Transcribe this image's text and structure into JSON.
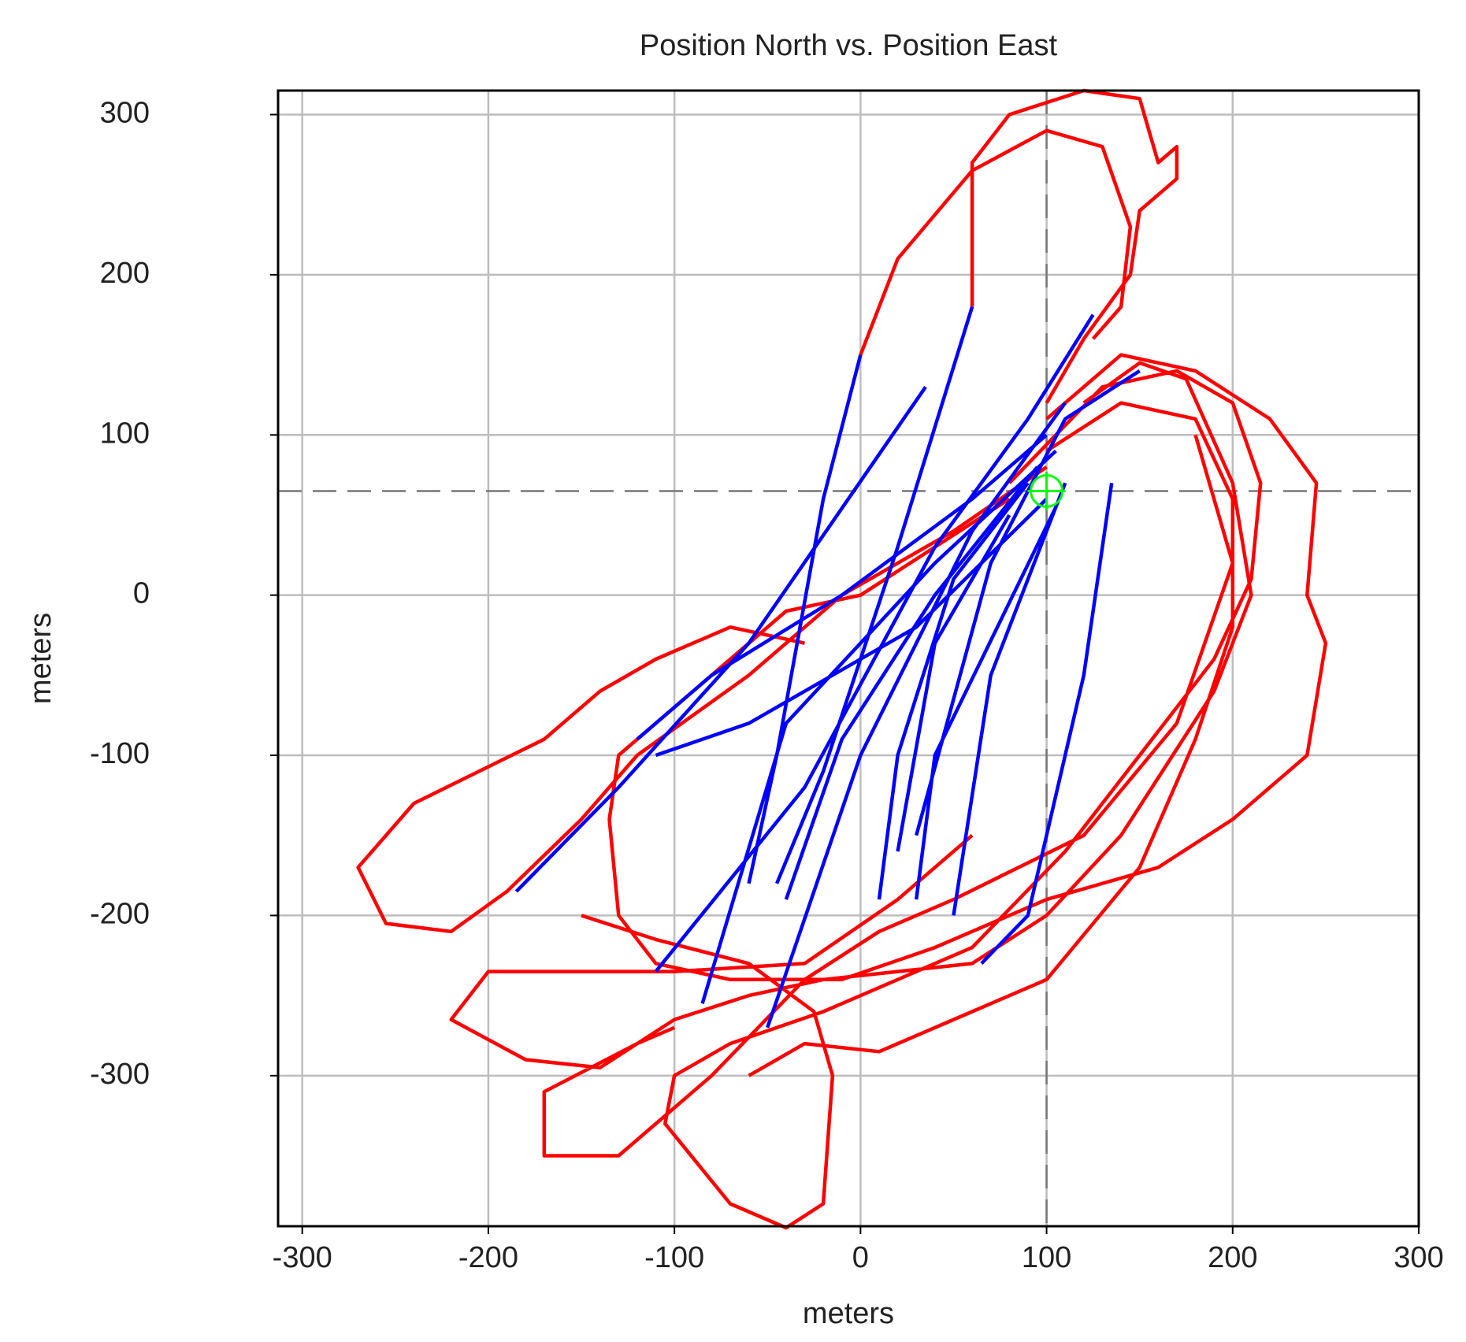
{
  "chart_data": {
    "type": "line",
    "title": "Position North vs. Position East",
    "xlabel": "meters",
    "ylabel": "meters",
    "xlim": [
      -313,
      300
    ],
    "ylim": [
      -394,
      315
    ],
    "xticks": [
      -300,
      -200,
      -100,
      0,
      100,
      200,
      300
    ],
    "yticks": [
      -300,
      -200,
      -100,
      0,
      100,
      200,
      300
    ],
    "grid": true,
    "crosshair": {
      "x": 100,
      "y": 65,
      "color": "#00ff00"
    },
    "series": [
      {
        "color": "#ff0000",
        "x": [
          0,
          20,
          60,
          100,
          130,
          145,
          140,
          125,
          null,
          60,
          60,
          80,
          120,
          150,
          160,
          170,
          170,
          150,
          145,
          120,
          100,
          null,
          100,
          140,
          180,
          220,
          245,
          240,
          250,
          240,
          200,
          160,
          100,
          40,
          -10,
          -70,
          -110,
          -130,
          -135,
          -130,
          -90,
          -40,
          0,
          40,
          80,
          null,
          80,
          130,
          170,
          200,
          215,
          210,
          190,
          150,
          110,
          60,
          20,
          -20,
          -70,
          -100,
          -105,
          -70,
          -40,
          -20,
          -15,
          -25,
          -60,
          -110,
          -150,
          null,
          -30,
          -70,
          -110,
          -140,
          -170,
          -240,
          -270,
          -255,
          -220,
          -190,
          -150,
          -120,
          -60,
          -10,
          50,
          100,
          null,
          60,
          20,
          -30,
          -100,
          -200,
          -220,
          -180,
          -140,
          -100,
          -60,
          -20,
          20,
          60,
          100,
          140,
          190,
          210,
          200,
          175,
          150,
          120,
          null,
          -100,
          -120,
          -170,
          -170,
          -130,
          -80,
          -30,
          10,
          50,
          120,
          170,
          200,
          180,
          null,
          -60,
          -30,
          10,
          60,
          100,
          150,
          180,
          200,
          200,
          180,
          140,
          100
        ],
        "y": [
          150,
          210,
          265,
          290,
          280,
          230,
          180,
          160,
          null,
          180,
          270,
          300,
          315,
          310,
          270,
          280,
          260,
          240,
          200,
          160,
          120,
          null,
          110,
          150,
          140,
          110,
          70,
          0,
          -30,
          -100,
          -140,
          -170,
          -190,
          -220,
          -240,
          -240,
          -230,
          -200,
          -140,
          -100,
          -60,
          -10,
          0,
          30,
          60,
          null,
          70,
          130,
          140,
          120,
          70,
          10,
          -40,
          -100,
          -160,
          -220,
          -240,
          -260,
          -280,
          -300,
          -330,
          -380,
          -395,
          -380,
          -300,
          -260,
          -230,
          -215,
          -200,
          null,
          -30,
          -20,
          -40,
          -60,
          -90,
          -130,
          -170,
          -205,
          -210,
          -185,
          -140,
          -100,
          -50,
          0,
          40,
          80,
          null,
          -150,
          -190,
          -230,
          -235,
          -235,
          -265,
          -290,
          -295,
          -265,
          -250,
          -240,
          -235,
          -230,
          -200,
          -150,
          -60,
          0,
          70,
          135,
          145,
          120,
          null,
          -270,
          -280,
          -310,
          -350,
          -350,
          -300,
          -240,
          -210,
          -190,
          -150,
          -80,
          20,
          100,
          null,
          -300,
          -280,
          -285,
          -260,
          -240,
          -170,
          -90,
          -20,
          60,
          110,
          120,
          90
        ]
      },
      {
        "color": "#0000ff",
        "x": [
          0,
          -20,
          -45,
          -60,
          null,
          35,
          -60,
          -130,
          -185,
          null,
          60,
          20,
          -20,
          -45,
          null,
          125,
          90,
          40,
          -30,
          -110,
          null,
          100,
          60,
          -10,
          -80,
          -120,
          null,
          105,
          40,
          -40,
          -85,
          null,
          110,
          60,
          0,
          -50,
          null,
          95,
          40,
          -10,
          -40,
          null,
          90,
          50,
          20,
          10,
          null,
          80,
          40,
          20,
          null,
          150,
          110,
          70,
          30,
          null,
          110,
          70,
          50,
          null,
          105,
          40,
          30,
          null,
          135,
          120,
          90,
          65,
          null,
          100,
          30,
          -60,
          -110
        ],
        "y": [
          150,
          60,
          -100,
          -180,
          null,
          130,
          -30,
          -120,
          -185,
          null,
          180,
          30,
          -110,
          -180,
          null,
          175,
          110,
          30,
          -120,
          -235,
          null,
          100,
          60,
          0,
          -50,
          -90,
          null,
          90,
          20,
          -80,
          -255,
          null,
          120,
          40,
          -100,
          -270,
          null,
          80,
          0,
          -90,
          -190,
          null,
          70,
          10,
          -100,
          -190,
          null,
          50,
          -30,
          -160,
          null,
          140,
          110,
          20,
          -150,
          null,
          70,
          -50,
          -200,
          null,
          55,
          -100,
          -190,
          null,
          70,
          -50,
          -200,
          -230,
          null,
          60,
          -20,
          -80,
          -100
        ]
      }
    ]
  }
}
